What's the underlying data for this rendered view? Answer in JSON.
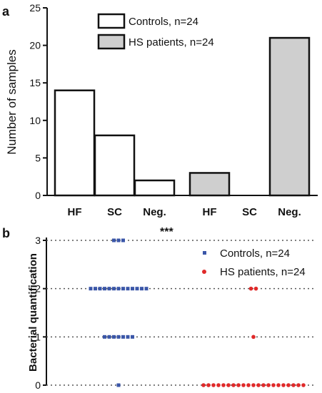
{
  "figure": {
    "panel_a_label": "a",
    "panel_b_label": "b",
    "significance": "***"
  },
  "colors": {
    "controls_bar": "#ffffff",
    "hs_bar": "#cfcfcf",
    "controls_dot": "#3a56a8",
    "hs_dot": "#e02a2a",
    "axis": "#111111"
  },
  "chart_data": [
    {
      "type": "bar",
      "ylabel": "Number of samples",
      "ylim": [
        0,
        25
      ],
      "yticks": [
        0,
        5,
        10,
        15,
        20,
        25
      ],
      "groups": [
        {
          "name": "Controls, n=24",
          "categories": [
            "HF",
            "SC",
            "Neg."
          ],
          "values": [
            14,
            8,
            2
          ]
        },
        {
          "name": "HS patients, n=24",
          "categories": [
            "HF",
            "SC",
            "Neg."
          ],
          "values": [
            3,
            0,
            21
          ]
        }
      ],
      "legend": "top-right",
      "grid": false
    },
    {
      "type": "scatter",
      "ylabel": "Bacterial quantification",
      "ylim": [
        0,
        3
      ],
      "yticks": [
        0,
        1,
        2,
        3
      ],
      "grid": true,
      "legend": "top-right",
      "series": [
        {
          "name": "Controls, n=24",
          "counts_by_level": {
            "0": 1,
            "1": 7,
            "2": 13,
            "3": 3
          }
        },
        {
          "name": "HS patients, n=24",
          "counts_by_level": {
            "0": 21,
            "1": 1,
            "2": 2,
            "3": 0
          }
        }
      ],
      "annotation": "***"
    }
  ]
}
